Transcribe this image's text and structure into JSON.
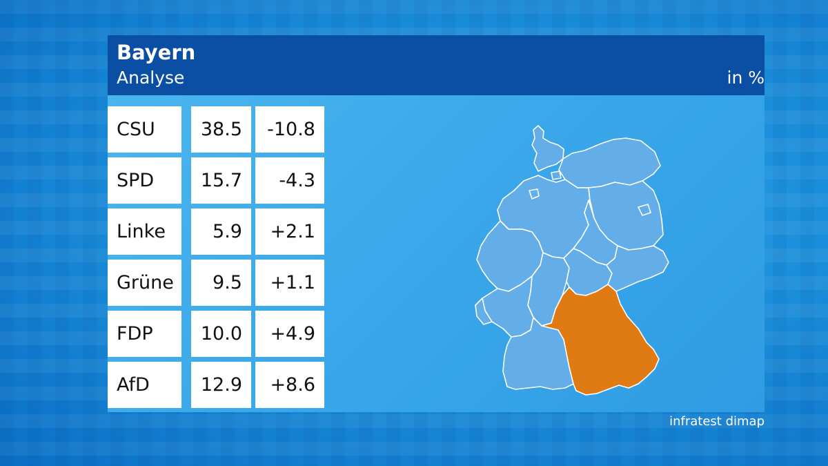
{
  "header": {
    "title": "Bayern",
    "subtitle": "Analyse",
    "unit": "in %"
  },
  "source": "infratest dimap",
  "colors": {
    "header_bg": "#0a4fa3",
    "map_state": "#63aee9",
    "map_highlight": "#e07b14"
  },
  "chart_data": {
    "type": "table",
    "title": "Bayern",
    "subtitle": "Analyse",
    "unit": "in %",
    "rows": [
      {
        "party": "CSU",
        "result": "38.5",
        "change": "-10.8"
      },
      {
        "party": "SPD",
        "result": "15.7",
        "change": "-4.3"
      },
      {
        "party": "Linke",
        "result": "5.9",
        "change": "+2.1"
      },
      {
        "party": "Grüne",
        "result": "9.5",
        "change": "+1.1"
      },
      {
        "party": "FDP",
        "result": "10.0",
        "change": "+4.9"
      },
      {
        "party": "AfD",
        "result": "12.9",
        "change": "+8.6"
      }
    ],
    "map": {
      "country": "Germany",
      "highlighted_state": "Bayern"
    }
  }
}
